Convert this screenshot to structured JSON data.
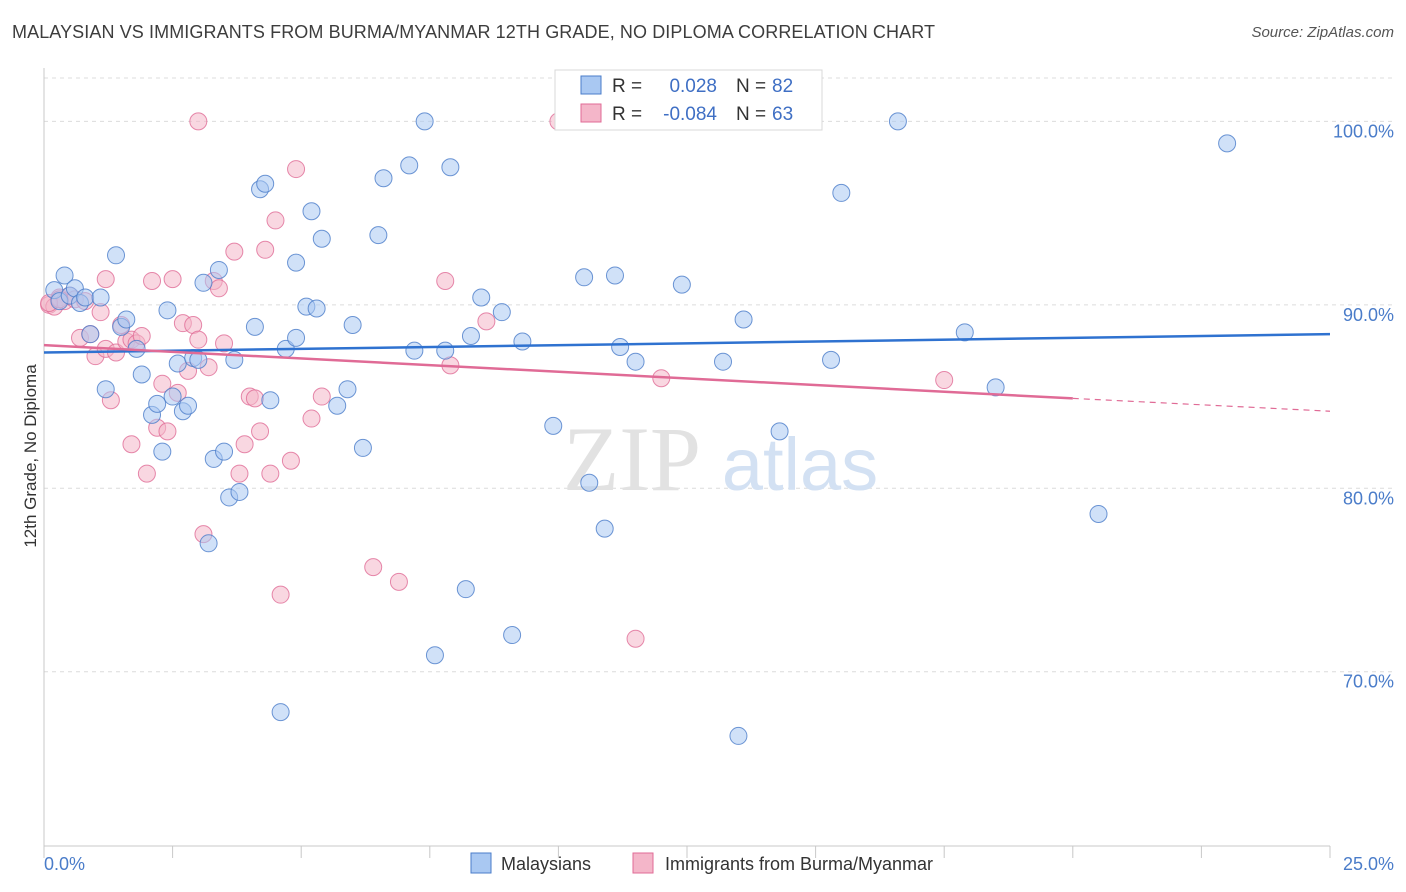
{
  "title": "MALAYSIAN VS IMMIGRANTS FROM BURMA/MYANMAR 12TH GRADE, NO DIPLOMA CORRELATION CHART",
  "source": "Source: ZipAtlas.com",
  "watermark": {
    "zip": "ZIP",
    "atlas": "atlas"
  },
  "colors": {
    "blue": "#4a7cc9",
    "blue_fill": "#a9c8f2",
    "blue_line": "#2f72d0",
    "pink": "#e06b96",
    "pink_fill": "#f4b6c9",
    "pink_line": "#e06b96",
    "grid": "#dcdcdc",
    "axis": "#c8c8c8"
  },
  "stats": [
    {
      "r_label": "R =",
      "r": "0.028",
      "n_label": "N =",
      "n": "82",
      "series": "Malaysians"
    },
    {
      "r_label": "R =",
      "r": "-0.084",
      "n_label": "N =",
      "n": "63",
      "series": "Immigrants from Burma/Myanmar"
    }
  ],
  "legend": [
    "Malaysians",
    "Immigrants from Burma/Myanmar"
  ],
  "chart_data": {
    "type": "scatter",
    "title": "MALAYSIAN VS IMMIGRANTS FROM BURMA/MYANMAR 12TH GRADE, NO DIPLOMA CORRELATION CHART",
    "xlabel": "",
    "ylabel": "12th Grade, No Diploma",
    "xlim": [
      0,
      25
    ],
    "ylim": [
      60.5,
      102.8
    ],
    "x_tick_labels": [
      "0.0%",
      "25.0%"
    ],
    "y_ticks": [
      70,
      80,
      90,
      100
    ],
    "y_tick_labels": [
      "70.0%",
      "80.0%",
      "90.0%",
      "100.0%"
    ],
    "grid": true,
    "series": [
      {
        "name": "Malaysians",
        "color": "#4a7cc9",
        "trend": {
          "x0": 0,
          "y0": 87.4,
          "x1": 25,
          "y1": 88.4
        },
        "points": [
          [
            0.2,
            90.8
          ],
          [
            0.3,
            90.2
          ],
          [
            0.4,
            91.6
          ],
          [
            0.5,
            90.5
          ],
          [
            0.6,
            90.9
          ],
          [
            0.7,
            90.1
          ],
          [
            0.8,
            90.4
          ],
          [
            0.9,
            88.4
          ],
          [
            1.1,
            90.4
          ],
          [
            1.2,
            85.4
          ],
          [
            1.4,
            92.7
          ],
          [
            1.5,
            88.8
          ],
          [
            1.6,
            89.2
          ],
          [
            1.8,
            87.6
          ],
          [
            1.9,
            86.2
          ],
          [
            2.1,
            84.0
          ],
          [
            2.2,
            84.6
          ],
          [
            2.3,
            82.0
          ],
          [
            2.4,
            89.7
          ],
          [
            2.5,
            85.0
          ],
          [
            2.6,
            86.8
          ],
          [
            2.7,
            84.2
          ],
          [
            2.8,
            84.5
          ],
          [
            2.9,
            87.1
          ],
          [
            3.0,
            87.0
          ],
          [
            3.1,
            91.2
          ],
          [
            3.3,
            81.6
          ],
          [
            3.4,
            91.9
          ],
          [
            3.5,
            82.0
          ],
          [
            3.6,
            79.5
          ],
          [
            3.7,
            87.0
          ],
          [
            3.8,
            79.8
          ],
          [
            3.2,
            77.0
          ],
          [
            4.1,
            88.8
          ],
          [
            4.2,
            96.3
          ],
          [
            4.3,
            96.6
          ],
          [
            4.4,
            84.8
          ],
          [
            4.6,
            67.8
          ],
          [
            4.7,
            87.6
          ],
          [
            4.9,
            88.2
          ],
          [
            4.9,
            92.3
          ],
          [
            5.1,
            89.9
          ],
          [
            5.2,
            95.1
          ],
          [
            5.3,
            89.8
          ],
          [
            5.4,
            93.6
          ],
          [
            5.7,
            84.5
          ],
          [
            5.9,
            85.4
          ],
          [
            6.0,
            88.9
          ],
          [
            6.2,
            82.2
          ],
          [
            6.5,
            93.8
          ],
          [
            6.6,
            96.9
          ],
          [
            7.1,
            97.6
          ],
          [
            7.2,
            87.5
          ],
          [
            7.4,
            100.0
          ],
          [
            7.6,
            70.9
          ],
          [
            7.8,
            87.5
          ],
          [
            7.9,
            97.5
          ],
          [
            8.2,
            74.5
          ],
          [
            8.3,
            88.3
          ],
          [
            8.5,
            90.4
          ],
          [
            8.9,
            89.6
          ],
          [
            9.1,
            72.0
          ],
          [
            9.3,
            88.0
          ],
          [
            9.9,
            83.4
          ],
          [
            10.5,
            91.5
          ],
          [
            10.6,
            80.3
          ],
          [
            10.9,
            77.8
          ],
          [
            11.1,
            91.6
          ],
          [
            11.2,
            87.7
          ],
          [
            11.5,
            86.9
          ],
          [
            12.4,
            91.1
          ],
          [
            13.2,
            86.9
          ],
          [
            13.5,
            66.5
          ],
          [
            13.6,
            89.2
          ],
          [
            14.3,
            83.1
          ],
          [
            15.3,
            87.0
          ],
          [
            15.5,
            96.1
          ],
          [
            16.6,
            100.0
          ],
          [
            17.9,
            88.5
          ],
          [
            18.5,
            85.5
          ],
          [
            20.5,
            78.6
          ],
          [
            23.0,
            98.8
          ]
        ]
      },
      {
        "name": "Immigrants from Burma/Myanmar",
        "color": "#e06b96",
        "trend": {
          "x0": 0,
          "y0": 87.8,
          "x1": 20,
          "y1": 84.9,
          "dash_x1": 25,
          "dash_y1": 84.2
        },
        "points": [
          [
            0.1,
            90.0
          ],
          [
            0.2,
            89.9
          ],
          [
            0.3,
            90.4
          ],
          [
            0.4,
            90.2
          ],
          [
            0.5,
            90.5
          ],
          [
            0.6,
            90.3
          ],
          [
            0.7,
            88.2
          ],
          [
            0.8,
            90.2
          ],
          [
            0.9,
            88.4
          ],
          [
            1.0,
            87.2
          ],
          [
            1.1,
            89.6
          ],
          [
            1.2,
            87.6
          ],
          [
            1.2,
            91.4
          ],
          [
            1.3,
            84.8
          ],
          [
            1.4,
            87.4
          ],
          [
            1.5,
            88.9
          ],
          [
            1.6,
            88.0
          ],
          [
            1.7,
            82.4
          ],
          [
            1.7,
            88.1
          ],
          [
            1.8,
            87.9
          ],
          [
            1.9,
            88.3
          ],
          [
            2.0,
            80.8
          ],
          [
            2.1,
            91.3
          ],
          [
            2.2,
            83.3
          ],
          [
            2.3,
            85.7
          ],
          [
            2.4,
            83.1
          ],
          [
            2.5,
            91.4
          ],
          [
            2.6,
            85.2
          ],
          [
            2.7,
            89.0
          ],
          [
            2.8,
            86.4
          ],
          [
            2.9,
            88.9
          ],
          [
            3.0,
            88.1
          ],
          [
            3.0,
            100.0
          ],
          [
            3.1,
            77.5
          ],
          [
            3.2,
            86.6
          ],
          [
            3.3,
            91.3
          ],
          [
            3.4,
            90.9
          ],
          [
            3.5,
            87.9
          ],
          [
            3.7,
            92.9
          ],
          [
            3.8,
            80.8
          ],
          [
            3.9,
            82.4
          ],
          [
            4.0,
            85.0
          ],
          [
            4.1,
            84.9
          ],
          [
            4.2,
            83.1
          ],
          [
            4.3,
            93.0
          ],
          [
            4.4,
            80.8
          ],
          [
            4.5,
            94.6
          ],
          [
            4.6,
            74.2
          ],
          [
            4.8,
            81.5
          ],
          [
            4.9,
            97.4
          ],
          [
            5.2,
            83.8
          ],
          [
            5.4,
            85.0
          ],
          [
            6.4,
            75.7
          ],
          [
            6.9,
            74.9
          ],
          [
            7.8,
            91.3
          ],
          [
            7.9,
            86.7
          ],
          [
            8.6,
            89.1
          ],
          [
            10.0,
            100.0
          ],
          [
            11.5,
            71.8
          ],
          [
            12.0,
            86.0
          ],
          [
            17.5,
            85.9
          ],
          [
            0.1,
            90.1
          ],
          [
            0.3,
            90.3
          ]
        ]
      }
    ]
  }
}
